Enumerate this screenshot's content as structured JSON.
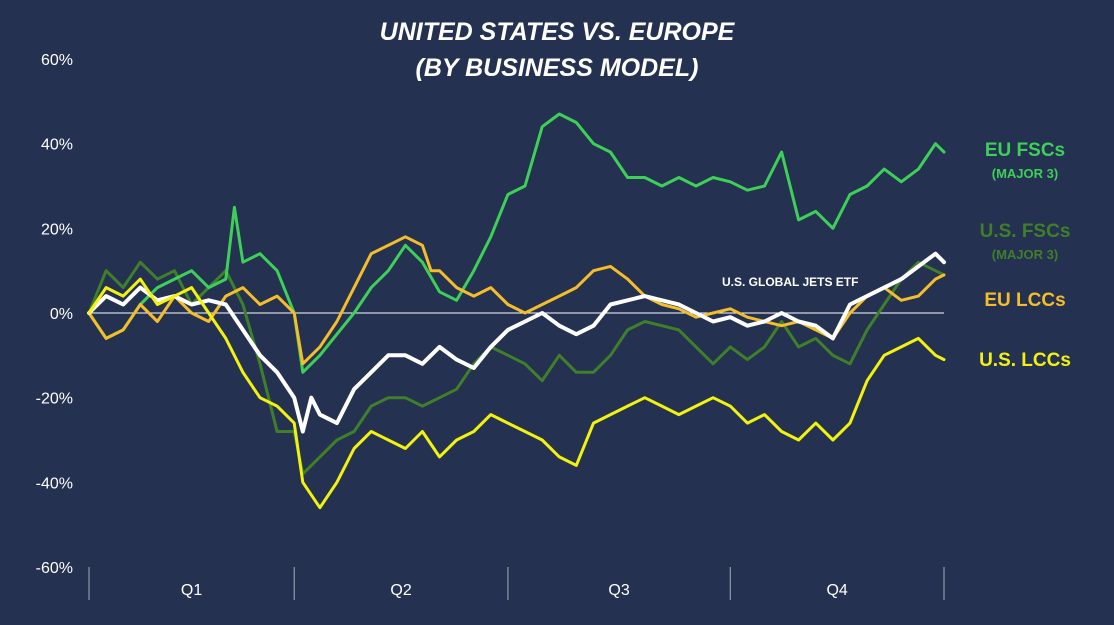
{
  "chart_data": {
    "type": "line",
    "title": [
      "UNITED STATES VS. EUROPE",
      "(BY BUSINESS MODEL)"
    ],
    "xlabel": "",
    "ylabel": "",
    "ylim": [
      -60,
      60
    ],
    "yticks": [
      60,
      40,
      20,
      0,
      -20,
      -40,
      -60
    ],
    "ytick_labels": [
      "60%",
      "40%",
      "20%",
      "0%",
      "-20%",
      "-40%",
      "-60%"
    ],
    "quarters": [
      "Q1",
      "Q2",
      "Q3",
      "Q4"
    ],
    "x_range": [
      0,
      200
    ],
    "quarter_bounds": [
      0,
      48,
      98,
      150,
      200
    ],
    "annotation": "U.S. GLOBAL JETS ETF",
    "colors": {
      "eu_fsc": "#3ecf58",
      "us_fsc": "#3f7f2a",
      "eu_lcc": "#f4bd2a",
      "us_lcc": "#f2f20f",
      "etf": "#ffffff",
      "zero_line": "#ffffff"
    },
    "series": [
      {
        "key": "us_fsc",
        "name": "U.S. FSCs",
        "subtitle": "(MAJOR 3)",
        "color": "#3f7f2a",
        "width": 3,
        "x": [
          0,
          4,
          8,
          12,
          16,
          20,
          24,
          28,
          32,
          36,
          40,
          44,
          48,
          50,
          54,
          58,
          62,
          66,
          70,
          74,
          78,
          82,
          86,
          90,
          94,
          98,
          102,
          106,
          110,
          114,
          118,
          122,
          126,
          130,
          134,
          138,
          142,
          146,
          150,
          154,
          158,
          162,
          166,
          170,
          174,
          178,
          182,
          186,
          190,
          194,
          198,
          200
        ],
        "values": [
          0,
          10,
          6,
          12,
          8,
          10,
          2,
          6,
          10,
          2,
          -12,
          -28,
          -28,
          -38,
          -34,
          -30,
          -28,
          -22,
          -20,
          -20,
          -22,
          -20,
          -18,
          -12,
          -8,
          -10,
          -12,
          -16,
          -10,
          -14,
          -14,
          -10,
          -4,
          -2,
          -3,
          -4,
          -8,
          -12,
          -8,
          -11,
          -8,
          -2,
          -8,
          -6,
          -10,
          -12,
          -4,
          2,
          8,
          12,
          10,
          9
        ]
      },
      {
        "key": "eu_fsc",
        "name": "EU FSCs",
        "subtitle": "(MAJOR 3)",
        "color": "#3ecf58",
        "width": 3,
        "x": [
          0,
          4,
          8,
          12,
          16,
          20,
          24,
          28,
          32,
          34,
          36,
          40,
          44,
          48,
          50,
          54,
          58,
          62,
          66,
          70,
          74,
          78,
          82,
          86,
          90,
          94,
          98,
          102,
          106,
          110,
          114,
          118,
          122,
          126,
          130,
          134,
          138,
          142,
          146,
          150,
          154,
          158,
          162,
          166,
          170,
          174,
          178,
          182,
          186,
          190,
          194,
          198,
          200
        ],
        "values": [
          0,
          -6,
          -4,
          2,
          6,
          8,
          10,
          6,
          8,
          25,
          12,
          14,
          10,
          0,
          -14,
          -10,
          -5,
          0,
          6,
          10,
          16,
          12,
          5,
          3,
          10,
          18,
          28,
          30,
          44,
          47,
          45,
          40,
          38,
          32,
          32,
          30,
          32,
          30,
          32,
          31,
          29,
          30,
          38,
          22,
          24,
          20,
          28,
          30,
          34,
          31,
          34,
          40,
          38
        ]
      },
      {
        "key": "eu_lcc",
        "name": "EU LCCs",
        "subtitle": "",
        "color": "#f4bd2a",
        "width": 3,
        "x": [
          0,
          4,
          8,
          12,
          16,
          20,
          24,
          28,
          32,
          36,
          40,
          44,
          48,
          50,
          54,
          58,
          62,
          66,
          70,
          74,
          78,
          80,
          82,
          86,
          90,
          94,
          98,
          102,
          106,
          110,
          114,
          118,
          122,
          126,
          130,
          134,
          138,
          142,
          146,
          150,
          154,
          158,
          162,
          166,
          170,
          174,
          178,
          182,
          186,
          190,
          194,
          198,
          200
        ],
        "values": [
          0,
          -6,
          -4,
          2,
          -2,
          4,
          0,
          -2,
          4,
          6,
          2,
          4,
          0,
          -12,
          -8,
          -2,
          6,
          14,
          16,
          18,
          16,
          10,
          10,
          6,
          4,
          6,
          2,
          0,
          2,
          4,
          6,
          10,
          11,
          8,
          4,
          2,
          1,
          -1,
          0,
          1,
          -1,
          -2,
          -3,
          -2,
          -4,
          -6,
          0,
          4,
          6,
          3,
          4,
          8,
          9
        ]
      },
      {
        "key": "etf",
        "name": "U.S. GLOBAL JETS ETF",
        "subtitle": "",
        "color": "#ffffff",
        "width": 4,
        "x": [
          0,
          4,
          8,
          12,
          16,
          20,
          24,
          28,
          32,
          36,
          40,
          44,
          48,
          50,
          52,
          54,
          58,
          62,
          66,
          70,
          74,
          78,
          82,
          86,
          90,
          94,
          98,
          102,
          106,
          110,
          114,
          118,
          122,
          126,
          130,
          134,
          138,
          142,
          146,
          150,
          154,
          158,
          162,
          166,
          170,
          174,
          178,
          182,
          186,
          190,
          194,
          198,
          200
        ],
        "values": [
          0,
          4,
          2,
          6,
          3,
          4,
          2,
          3,
          2,
          -4,
          -10,
          -14,
          -20,
          -28,
          -20,
          -24,
          -26,
          -18,
          -14,
          -10,
          -10,
          -12,
          -8,
          -11,
          -13,
          -8,
          -4,
          -2,
          0,
          -3,
          -5,
          -3,
          2,
          3,
          4,
          3,
          2,
          0,
          -2,
          -1,
          -3,
          -2,
          0,
          -2,
          -3,
          -6,
          2,
          4,
          6,
          8,
          11,
          14,
          12
        ]
      },
      {
        "key": "us_lcc",
        "name": "U.S. LCCs",
        "subtitle": "",
        "color": "#f2f20f",
        "width": 3,
        "x": [
          0,
          4,
          8,
          12,
          16,
          20,
          24,
          28,
          32,
          36,
          40,
          44,
          48,
          50,
          54,
          58,
          62,
          66,
          70,
          74,
          78,
          82,
          86,
          90,
          94,
          98,
          102,
          106,
          110,
          114,
          118,
          122,
          126,
          130,
          134,
          138,
          142,
          146,
          150,
          154,
          158,
          162,
          166,
          170,
          174,
          178,
          182,
          186,
          190,
          194,
          198,
          200
        ],
        "values": [
          0,
          6,
          4,
          8,
          2,
          4,
          6,
          0,
          -6,
          -14,
          -20,
          -22,
          -26,
          -40,
          -46,
          -40,
          -32,
          -28,
          -30,
          -32,
          -28,
          -34,
          -30,
          -28,
          -24,
          -26,
          -28,
          -30,
          -34,
          -36,
          -26,
          -24,
          -22,
          -20,
          -22,
          -24,
          -22,
          -20,
          -22,
          -26,
          -24,
          -28,
          -30,
          -26,
          -30,
          -26,
          -16,
          -10,
          -8,
          -6,
          -10,
          -11
        ]
      }
    ]
  }
}
